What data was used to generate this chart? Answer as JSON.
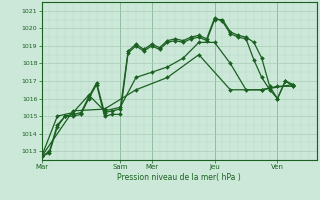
{
  "background_color": "#cce8d8",
  "grid_color_major": "#a8ccb8",
  "grid_color_minor": "#b8d8c8",
  "line_color": "#1a6020",
  "title": "Pression niveau de la mer( hPa )",
  "ylim": [
    1012.5,
    1021.5
  ],
  "yticks": [
    1013,
    1014,
    1015,
    1016,
    1017,
    1018,
    1019,
    1020,
    1021
  ],
  "day_labels": [
    "Mar",
    "Sam",
    "Mer",
    "Jeu",
    "Ven"
  ],
  "day_positions": [
    0,
    60,
    84,
    132,
    180
  ],
  "total_hours": 210,
  "series": [
    {
      "x": [
        0,
        6,
        12,
        18,
        24,
        30,
        36,
        42,
        48,
        54,
        60,
        66,
        72,
        78,
        84,
        90,
        96,
        102,
        108,
        114,
        120,
        126,
        132,
        138,
        144,
        150,
        156,
        162,
        168,
        174,
        180,
        186,
        192
      ],
      "y": [
        1012.7,
        1012.9,
        1014.4,
        1015.0,
        1015.0,
        1015.1,
        1016.0,
        1016.8,
        1015.0,
        1015.1,
        1015.1,
        1018.6,
        1019.0,
        1018.7,
        1019.0,
        1018.8,
        1019.2,
        1019.3,
        1019.2,
        1019.4,
        1019.5,
        1019.3,
        1020.5,
        1020.5,
        1019.8,
        1019.6,
        1019.5,
        1019.2,
        1018.3,
        1016.7,
        1016.0,
        1017.0,
        1016.7
      ],
      "marker": "D",
      "markersize": 2.0,
      "linewidth": 0.9,
      "linestyle": "-"
    },
    {
      "x": [
        0,
        6,
        12,
        18,
        24,
        30,
        36,
        42,
        48,
        54,
        60,
        66,
        72,
        78,
        84,
        90,
        96,
        102,
        108,
        114,
        120,
        126,
        132,
        138,
        144,
        150,
        156,
        162,
        168,
        174,
        180,
        186,
        192
      ],
      "y": [
        1012.7,
        1013.0,
        1014.5,
        1015.0,
        1015.1,
        1015.2,
        1016.1,
        1016.9,
        1015.2,
        1015.3,
        1015.4,
        1018.7,
        1019.1,
        1018.8,
        1019.1,
        1018.9,
        1019.3,
        1019.4,
        1019.3,
        1019.5,
        1019.6,
        1019.4,
        1020.6,
        1020.4,
        1019.7,
        1019.5,
        1019.4,
        1018.2,
        1017.2,
        1016.5,
        1016.0,
        1017.0,
        1016.8
      ],
      "marker": "D",
      "markersize": 2.0,
      "linewidth": 0.9,
      "linestyle": "-"
    },
    {
      "x": [
        0,
        12,
        24,
        36,
        48,
        60,
        72,
        84,
        96,
        108,
        120,
        132,
        144,
        156,
        168,
        180,
        192
      ],
      "y": [
        1012.7,
        1015.0,
        1015.2,
        1016.2,
        1015.3,
        1015.5,
        1017.2,
        1017.5,
        1017.8,
        1018.3,
        1019.2,
        1019.2,
        1018.0,
        1016.5,
        1016.5,
        1016.7,
        1016.7
      ],
      "marker": "D",
      "markersize": 2.0,
      "linewidth": 0.9,
      "linestyle": "-"
    },
    {
      "x": [
        0,
        24,
        48,
        72,
        96,
        120,
        144,
        168,
        192
      ],
      "y": [
        1012.7,
        1015.3,
        1015.4,
        1016.5,
        1017.2,
        1018.5,
        1016.5,
        1016.5,
        1016.8
      ],
      "marker": "D",
      "markersize": 2.0,
      "linewidth": 0.9,
      "linestyle": "-"
    }
  ]
}
